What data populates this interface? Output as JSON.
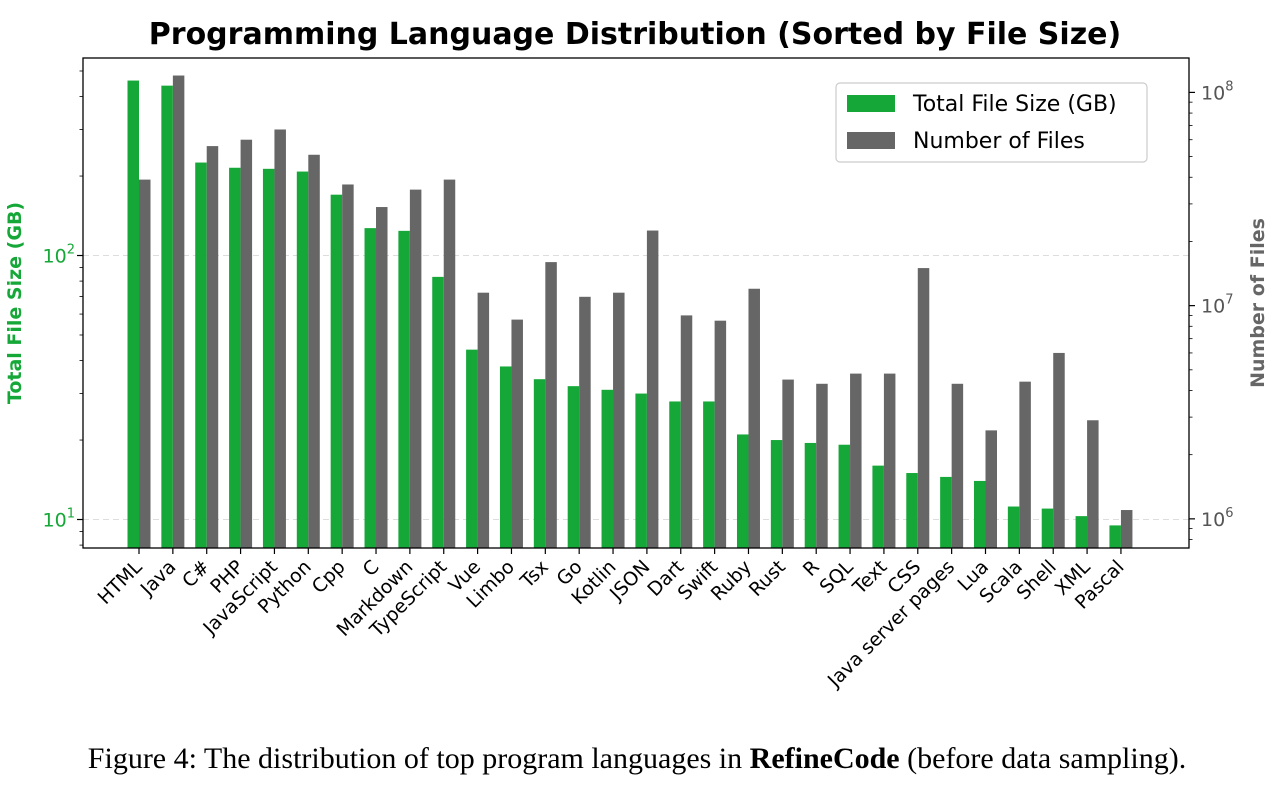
{
  "caption": {
    "prefix": "Figure 4: The distribution of top program languages in ",
    "bold": "RefineCode",
    "suffix": " (before data sampling)."
  },
  "colors": {
    "size": "#15a838",
    "files": "#666666"
  },
  "chart_data": {
    "type": "bar",
    "title": "Programming Language Distribution (Sorted by File Size)",
    "ylabel": "Total File Size (GB)",
    "ylabel_right": "Number of Files",
    "yscale": "log",
    "y2scale": "log",
    "ylim": [
      7.8,
      560
    ],
    "y2lim": [
      730000,
      145000000
    ],
    "yticks": [
      {
        "value": 10,
        "base": "10",
        "exp": "1"
      },
      {
        "value": 100,
        "base": "10",
        "exp": "2"
      }
    ],
    "y2ticks": [
      {
        "value": 1000000,
        "base": "10",
        "exp": "6"
      },
      {
        "value": 10000000,
        "base": "10",
        "exp": "7"
      },
      {
        "value": 100000000,
        "base": "10",
        "exp": "8"
      }
    ],
    "grid": "horizontal-dashed",
    "legend": "top-right",
    "categories": [
      "HTML",
      "Java",
      "C#",
      "PHP",
      "JavaScript",
      "Python",
      "Cpp",
      "C",
      "Markdown",
      "TypeScript",
      "Vue",
      "Limbo",
      "Tsx",
      "Go",
      "Kotlin",
      "JSON",
      "Dart",
      "Swift",
      "Ruby",
      "Rust",
      "R",
      "SQL",
      "Text",
      "CSS",
      "Java server pages",
      "Lua",
      "Scala",
      "Shell",
      "XML",
      "Pascal"
    ],
    "series": [
      {
        "name": "Total File Size (GB)",
        "axis": "left",
        "values": [
          460,
          440,
          225,
          215,
          213,
          208,
          170,
          127,
          124,
          83,
          44,
          38,
          34,
          32,
          31,
          30,
          28,
          28,
          21,
          20,
          19.5,
          19.2,
          16,
          15,
          14.5,
          14,
          11.2,
          11,
          10.3,
          9.5
        ]
      },
      {
        "name": "Number of Files",
        "axis": "right",
        "values": [
          39000000,
          120000000,
          56000000,
          60000000,
          67000000,
          51000000,
          37000000,
          29000000,
          35000000,
          39000000,
          11500000,
          8600000,
          16000000,
          11000000,
          11500000,
          22500000,
          9000000,
          8500000,
          12000000,
          4500000,
          4300000,
          4800000,
          4800000,
          15000000,
          4300000,
          2600000,
          4400000,
          6000000,
          2900000,
          1100000
        ]
      }
    ]
  }
}
